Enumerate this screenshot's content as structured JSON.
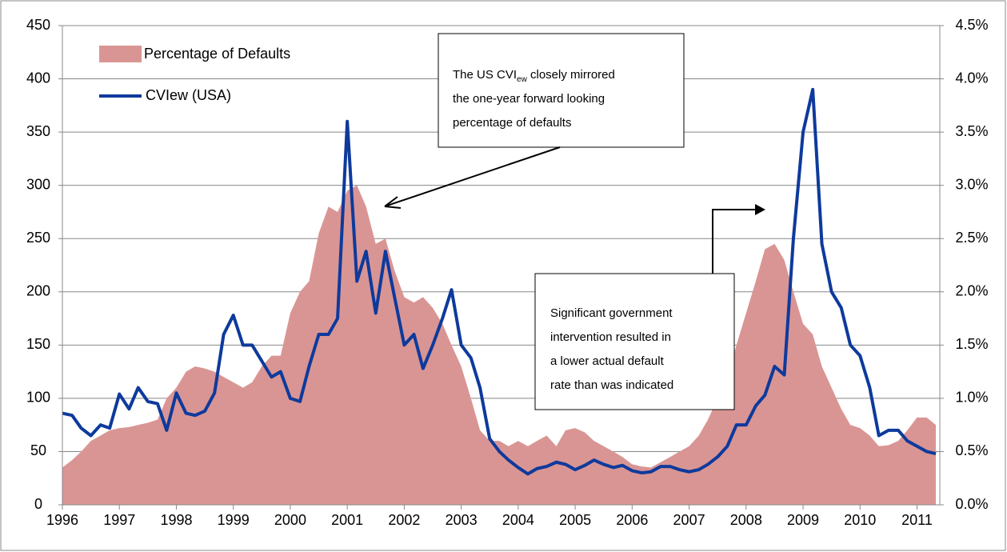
{
  "chart_data": {
    "type": "area_line",
    "x": [
      1996,
      1996.17,
      1996.33,
      1996.5,
      1996.67,
      1996.83,
      1997,
      1997.17,
      1997.33,
      1997.5,
      1997.67,
      1997.83,
      1998,
      1998.17,
      1998.33,
      1998.5,
      1998.67,
      1998.83,
      1999,
      1999.17,
      1999.33,
      1999.5,
      1999.67,
      1999.83,
      2000,
      2000.17,
      2000.33,
      2000.5,
      2000.67,
      2000.83,
      2001,
      2001.17,
      2001.33,
      2001.5,
      2001.67,
      2001.83,
      2002,
      2002.17,
      2002.33,
      2002.5,
      2002.67,
      2002.83,
      2003,
      2003.17,
      2003.33,
      2003.5,
      2003.67,
      2003.83,
      2004,
      2004.17,
      2004.33,
      2004.5,
      2004.67,
      2004.83,
      2005,
      2005.17,
      2005.33,
      2005.5,
      2005.67,
      2005.83,
      2006,
      2006.17,
      2006.33,
      2006.5,
      2006.67,
      2006.83,
      2007,
      2007.17,
      2007.33,
      2007.5,
      2007.67,
      2007.83,
      2008,
      2008.17,
      2008.33,
      2008.5,
      2008.67,
      2008.83,
      2009,
      2009.17,
      2009.33,
      2009.5,
      2009.67,
      2009.83,
      2010,
      2010.17,
      2010.33,
      2010.5,
      2010.67,
      2010.83,
      2011,
      2011.17,
      2011.33
    ],
    "series": [
      {
        "name": "Percentage of Defaults",
        "color": "#d99594",
        "kind": "area",
        "axis": "y2",
        "values": [
          0.35,
          0.42,
          0.5,
          0.6,
          0.65,
          0.7,
          0.72,
          0.73,
          0.75,
          0.77,
          0.8,
          1.0,
          1.1,
          1.25,
          1.3,
          1.28,
          1.25,
          1.2,
          1.15,
          1.1,
          1.15,
          1.3,
          1.4,
          1.4,
          1.8,
          2.0,
          2.1,
          2.55,
          2.8,
          2.75,
          2.95,
          3.0,
          2.8,
          2.45,
          2.5,
          2.2,
          1.95,
          1.9,
          1.95,
          1.85,
          1.7,
          1.5,
          1.3,
          1.0,
          0.7,
          0.6,
          0.6,
          0.55,
          0.6,
          0.55,
          0.6,
          0.65,
          0.55,
          0.7,
          0.72,
          0.68,
          0.6,
          0.55,
          0.5,
          0.45,
          0.38,
          0.36,
          0.35,
          0.4,
          0.45,
          0.5,
          0.55,
          0.65,
          0.8,
          1.0,
          1.2,
          1.5,
          1.8,
          2.1,
          2.4,
          2.45,
          2.3,
          2.0,
          1.7,
          1.6,
          1.3,
          1.1,
          0.9,
          0.75,
          0.72,
          0.65,
          0.55,
          0.56,
          0.6,
          0.7,
          0.82,
          0.82,
          0.75
        ]
      },
      {
        "name": "CVIew (USA)",
        "color": "#0e3a9c",
        "kind": "line",
        "values": [
          86,
          84,
          72,
          65,
          75,
          72,
          104,
          90,
          110,
          97,
          95,
          70,
          105,
          86,
          84,
          88,
          105,
          160,
          178,
          150,
          150,
          135,
          120,
          125,
          100,
          97,
          130,
          160,
          160,
          175,
          360,
          210,
          238,
          180,
          238,
          195,
          150,
          160,
          128,
          150,
          175,
          202,
          150,
          138,
          110,
          62,
          50,
          42,
          35,
          29,
          34,
          36,
          40,
          38,
          33,
          37,
          42,
          38,
          35,
          37,
          32,
          30,
          31,
          36,
          36,
          33,
          31,
          33,
          38,
          45,
          55,
          75,
          75,
          93,
          103,
          130,
          122,
          250,
          350,
          390,
          245,
          200,
          185,
          150,
          140,
          110,
          65,
          70,
          70,
          60,
          55,
          50,
          48
        ]
      }
    ],
    "xlim": [
      1996,
      2011.4
    ],
    "xticks": [
      1996,
      1997,
      1998,
      1999,
      2000,
      2001,
      2002,
      2003,
      2004,
      2005,
      2006,
      2007,
      2008,
      2009,
      2010,
      2011
    ],
    "ylim": [
      0,
      450
    ],
    "yticks": [
      0,
      50,
      100,
      150,
      200,
      250,
      300,
      350,
      400,
      450
    ],
    "y2lim": [
      0,
      4.5
    ],
    "y2ticks": [
      {
        "value": 0,
        "label": "0.0%"
      },
      {
        "value": 0.5,
        "label": "0.5%"
      },
      {
        "value": 1,
        "label": "1.0%"
      },
      {
        "value": 1.5,
        "label": "1.5%"
      },
      {
        "value": 2,
        "label": "2.0%"
      },
      {
        "value": 2.5,
        "label": "2.5%"
      },
      {
        "value": 3,
        "label": "3.0%"
      },
      {
        "value": 3.5,
        "label": "3.5%"
      },
      {
        "value": 4,
        "label": "4.0%"
      },
      {
        "value": 4.5,
        "label": "4.5%"
      }
    ],
    "grid": true,
    "legend": "upper left",
    "annotations": [
      {
        "before": "The US CVI",
        "subscript": "ew",
        "after": " closely mirrored",
        "lines": [
          "the one-year forward looking",
          "percentage of defaults"
        ]
      },
      {
        "lines": [
          "Significant government",
          "intervention resulted in",
          "a lower actual default",
          "rate than was indicated"
        ]
      }
    ]
  }
}
